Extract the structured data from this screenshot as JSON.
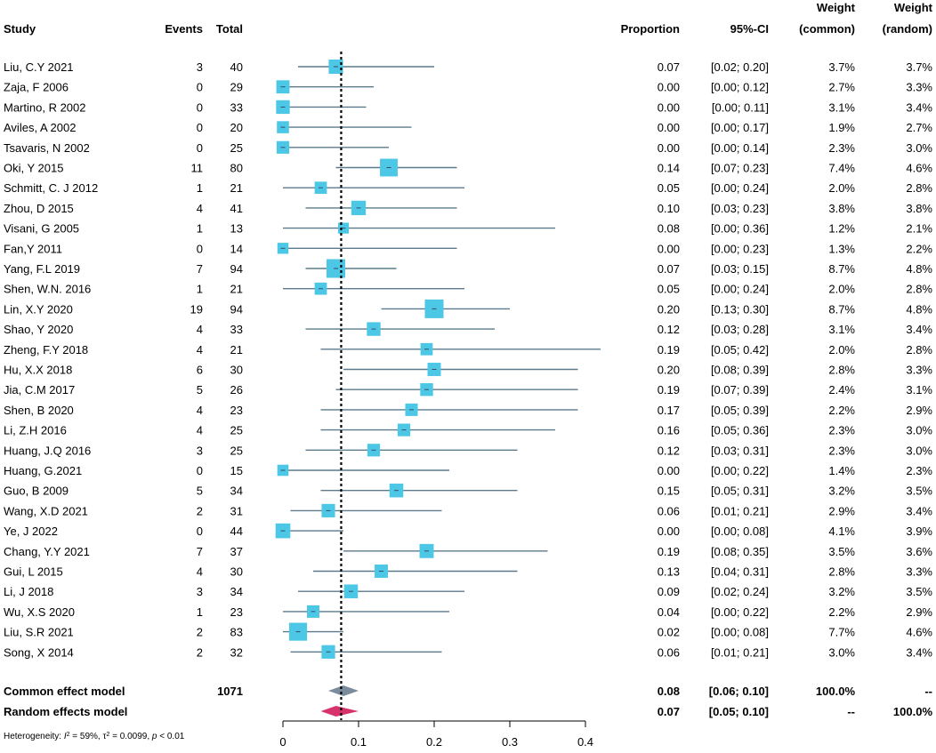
{
  "headers": {
    "study": "Study",
    "events": "Events",
    "total": "Total",
    "proportion": "Proportion",
    "ci": "95%-CI",
    "weight_common_l1": "Weight",
    "weight_common_l2": "(common)",
    "weight_random_l1": "Weight",
    "weight_random_l2": "(random)"
  },
  "chart_data": {
    "type": "forest",
    "xlim": [
      0,
      0.4
    ],
    "xticks": [
      0,
      0.1,
      0.2,
      0.3,
      0.4
    ],
    "xtick_labels": [
      "0",
      "0.1",
      "0.2",
      "0.3",
      "0.4"
    ],
    "reference_line": 0.077,
    "colors": {
      "square": "#4cc8e6",
      "ci_line": "#5b7a8c",
      "common_diamond": "#7a8c9c",
      "random_diamond": "#d6336c"
    },
    "studies": [
      {
        "study": "Liu, C.Y 2021",
        "events": "3",
        "total": "40",
        "prop": 0.07,
        "lo": 0.02,
        "hi": 0.2,
        "prop_label": "0.07",
        "ci_label": "[0.02; 0.20]",
        "wc": 3.7,
        "wc_label": "3.7%",
        "wr_label": "3.7%"
      },
      {
        "study": "Zaja, F 2006",
        "events": "0",
        "total": "29",
        "prop": 0.0,
        "lo": 0.0,
        "hi": 0.12,
        "prop_label": "0.00",
        "ci_label": "[0.00; 0.12]",
        "wc": 2.7,
        "wc_label": "2.7%",
        "wr_label": "3.3%"
      },
      {
        "study": "Martino, R 2002",
        "events": "0",
        "total": "33",
        "prop": 0.0,
        "lo": 0.0,
        "hi": 0.11,
        "prop_label": "0.00",
        "ci_label": "[0.00; 0.11]",
        "wc": 3.1,
        "wc_label": "3.1%",
        "wr_label": "3.4%"
      },
      {
        "study": "Aviles, A 2002",
        "events": "0",
        "total": "20",
        "prop": 0.0,
        "lo": 0.0,
        "hi": 0.17,
        "prop_label": "0.00",
        "ci_label": "[0.00; 0.17]",
        "wc": 1.9,
        "wc_label": "1.9%",
        "wr_label": "2.7%"
      },
      {
        "study": "Tsavaris, N 2002",
        "events": "0",
        "total": "25",
        "prop": 0.0,
        "lo": 0.0,
        "hi": 0.14,
        "prop_label": "0.00",
        "ci_label": "[0.00; 0.14]",
        "wc": 2.3,
        "wc_label": "2.3%",
        "wr_label": "3.0%"
      },
      {
        "study": "Oki, Y 2015",
        "events": "11",
        "total": "80",
        "prop": 0.14,
        "lo": 0.07,
        "hi": 0.23,
        "prop_label": "0.14",
        "ci_label": "[0.07; 0.23]",
        "wc": 7.4,
        "wc_label": "7.4%",
        "wr_label": "4.6%"
      },
      {
        "study": "Schmitt, C. J 2012",
        "events": "1",
        "total": "21",
        "prop": 0.05,
        "lo": 0.0,
        "hi": 0.24,
        "prop_label": "0.05",
        "ci_label": "[0.00; 0.24]",
        "wc": 2.0,
        "wc_label": "2.0%",
        "wr_label": "2.8%"
      },
      {
        "study": "Zhou, D 2015",
        "events": "4",
        "total": "41",
        "prop": 0.1,
        "lo": 0.03,
        "hi": 0.23,
        "prop_label": "0.10",
        "ci_label": "[0.03; 0.23]",
        "wc": 3.8,
        "wc_label": "3.8%",
        "wr_label": "3.8%"
      },
      {
        "study": "Visani, G 2005",
        "events": "1",
        "total": "13",
        "prop": 0.08,
        "lo": 0.0,
        "hi": 0.36,
        "prop_label": "0.08",
        "ci_label": "[0.00; 0.36]",
        "wc": 1.2,
        "wc_label": "1.2%",
        "wr_label": "2.1%"
      },
      {
        "study": "Fan,Y 2011",
        "events": "0",
        "total": "14",
        "prop": 0.0,
        "lo": 0.0,
        "hi": 0.23,
        "prop_label": "0.00",
        "ci_label": "[0.00; 0.23]",
        "wc": 1.3,
        "wc_label": "1.3%",
        "wr_label": "2.2%"
      },
      {
        "study": "Yang, F.L 2019",
        "events": "7",
        "total": "94",
        "prop": 0.07,
        "lo": 0.03,
        "hi": 0.15,
        "prop_label": "0.07",
        "ci_label": "[0.03; 0.15]",
        "wc": 8.7,
        "wc_label": "8.7%",
        "wr_label": "4.8%"
      },
      {
        "study": "Shen, W.N. 2016",
        "events": "1",
        "total": "21",
        "prop": 0.05,
        "lo": 0.0,
        "hi": 0.24,
        "prop_label": "0.05",
        "ci_label": "[0.00; 0.24]",
        "wc": 2.0,
        "wc_label": "2.0%",
        "wr_label": "2.8%"
      },
      {
        "study": "Lin, X.Y 2020",
        "events": "19",
        "total": "94",
        "prop": 0.2,
        "lo": 0.13,
        "hi": 0.3,
        "prop_label": "0.20",
        "ci_label": "[0.13; 0.30]",
        "wc": 8.7,
        "wc_label": "8.7%",
        "wr_label": "4.8%"
      },
      {
        "study": "Shao, Y 2020",
        "events": "4",
        "total": "33",
        "prop": 0.12,
        "lo": 0.03,
        "hi": 0.28,
        "prop_label": "0.12",
        "ci_label": "[0.03; 0.28]",
        "wc": 3.1,
        "wc_label": "3.1%",
        "wr_label": "3.4%"
      },
      {
        "study": "Zheng, F.Y 2018",
        "events": "4",
        "total": "21",
        "prop": 0.19,
        "lo": 0.05,
        "hi": 0.42,
        "prop_label": "0.19",
        "ci_label": "[0.05; 0.42]",
        "wc": 2.0,
        "wc_label": "2.0%",
        "wr_label": "2.8%"
      },
      {
        "study": "Hu, X.X 2018",
        "events": "6",
        "total": "30",
        "prop": 0.2,
        "lo": 0.08,
        "hi": 0.39,
        "prop_label": "0.20",
        "ci_label": "[0.08; 0.39]",
        "wc": 2.8,
        "wc_label": "2.8%",
        "wr_label": "3.3%"
      },
      {
        "study": "Jia, C.M 2017",
        "events": "5",
        "total": "26",
        "prop": 0.19,
        "lo": 0.07,
        "hi": 0.39,
        "prop_label": "0.19",
        "ci_label": "[0.07; 0.39]",
        "wc": 2.4,
        "wc_label": "2.4%",
        "wr_label": "3.1%"
      },
      {
        "study": "Shen, B 2020",
        "events": "4",
        "total": "23",
        "prop": 0.17,
        "lo": 0.05,
        "hi": 0.39,
        "prop_label": "0.17",
        "ci_label": "[0.05; 0.39]",
        "wc": 2.2,
        "wc_label": "2.2%",
        "wr_label": "2.9%"
      },
      {
        "study": "Li, Z.H 2016",
        "events": "4",
        "total": "25",
        "prop": 0.16,
        "lo": 0.05,
        "hi": 0.36,
        "prop_label": "0.16",
        "ci_label": "[0.05; 0.36]",
        "wc": 2.3,
        "wc_label": "2.3%",
        "wr_label": "3.0%"
      },
      {
        "study": "Huang, J.Q 2016",
        "events": "3",
        "total": "25",
        "prop": 0.12,
        "lo": 0.03,
        "hi": 0.31,
        "prop_label": "0.12",
        "ci_label": "[0.03; 0.31]",
        "wc": 2.3,
        "wc_label": "2.3%",
        "wr_label": "3.0%"
      },
      {
        "study": "Huang, G.2021",
        "events": "0",
        "total": "15",
        "prop": 0.0,
        "lo": 0.0,
        "hi": 0.22,
        "prop_label": "0.00",
        "ci_label": "[0.00; 0.22]",
        "wc": 1.4,
        "wc_label": "1.4%",
        "wr_label": "2.3%"
      },
      {
        "study": "Guo, B 2009",
        "events": "5",
        "total": "34",
        "prop": 0.15,
        "lo": 0.05,
        "hi": 0.31,
        "prop_label": "0.15",
        "ci_label": "[0.05; 0.31]",
        "wc": 3.2,
        "wc_label": "3.2%",
        "wr_label": "3.5%"
      },
      {
        "study": "Wang, X.D 2021",
        "events": "2",
        "total": "31",
        "prop": 0.06,
        "lo": 0.01,
        "hi": 0.21,
        "prop_label": "0.06",
        "ci_label": "[0.01; 0.21]",
        "wc": 2.9,
        "wc_label": "2.9%",
        "wr_label": "3.4%"
      },
      {
        "study": "Ye, J 2022",
        "events": "0",
        "total": "44",
        "prop": 0.0,
        "lo": 0.0,
        "hi": 0.08,
        "prop_label": "0.00",
        "ci_label": "[0.00; 0.08]",
        "wc": 4.1,
        "wc_label": "4.1%",
        "wr_label": "3.9%"
      },
      {
        "study": "Chang, Y.Y 2021",
        "events": "7",
        "total": "37",
        "prop": 0.19,
        "lo": 0.08,
        "hi": 0.35,
        "prop_label": "0.19",
        "ci_label": "[0.08; 0.35]",
        "wc": 3.5,
        "wc_label": "3.5%",
        "wr_label": "3.6%"
      },
      {
        "study": "Gui, L 2015",
        "events": "4",
        "total": "30",
        "prop": 0.13,
        "lo": 0.04,
        "hi": 0.31,
        "prop_label": "0.13",
        "ci_label": "[0.04; 0.31]",
        "wc": 2.8,
        "wc_label": "2.8%",
        "wr_label": "3.3%"
      },
      {
        "study": "Li, J 2018",
        "events": "3",
        "total": "34",
        "prop": 0.09,
        "lo": 0.02,
        "hi": 0.24,
        "prop_label": "0.09",
        "ci_label": "[0.02; 0.24]",
        "wc": 3.2,
        "wc_label": "3.2%",
        "wr_label": "3.5%"
      },
      {
        "study": "Wu, X.S 2020",
        "events": "1",
        "total": "23",
        "prop": 0.04,
        "lo": 0.0,
        "hi": 0.22,
        "prop_label": "0.04",
        "ci_label": "[0.00; 0.22]",
        "wc": 2.2,
        "wc_label": "2.2%",
        "wr_label": "2.9%"
      },
      {
        "study": "Liu, S.R 2021",
        "events": "2",
        "total": "83",
        "prop": 0.02,
        "lo": 0.0,
        "hi": 0.08,
        "prop_label": "0.02",
        "ci_label": "[0.00; 0.08]",
        "wc": 7.7,
        "wc_label": "7.7%",
        "wr_label": "4.6%"
      },
      {
        "study": "Song, X 2014",
        "events": "2",
        "total": "32",
        "prop": 0.06,
        "lo": 0.01,
        "hi": 0.21,
        "prop_label": "0.06",
        "ci_label": "[0.01; 0.21]",
        "wc": 3.0,
        "wc_label": "3.0%",
        "wr_label": "3.4%"
      }
    ],
    "common": {
      "label": "Common effect model",
      "total": "1071",
      "prop": 0.08,
      "lo": 0.06,
      "hi": 0.1,
      "prop_label": "0.08",
      "ci_label": "[0.06; 0.10]",
      "wc_label": "100.0%",
      "wr_label": "--"
    },
    "random": {
      "label": "Random effects model",
      "prop": 0.07,
      "lo": 0.05,
      "hi": 0.1,
      "prop_label": "0.07",
      "ci_label": "[0.05; 0.10]",
      "wc_label": "--",
      "wr_label": "100.0%"
    },
    "heterogeneity": {
      "prefix": "Heterogeneity: ",
      "i2_symbol": "I",
      "i2_value": " = 59%, ",
      "tau_symbol": "τ",
      "tau_value": " = 0.0099, ",
      "p_symbol": "p",
      "p_value": " < 0.01",
      "exponent": "2"
    }
  }
}
